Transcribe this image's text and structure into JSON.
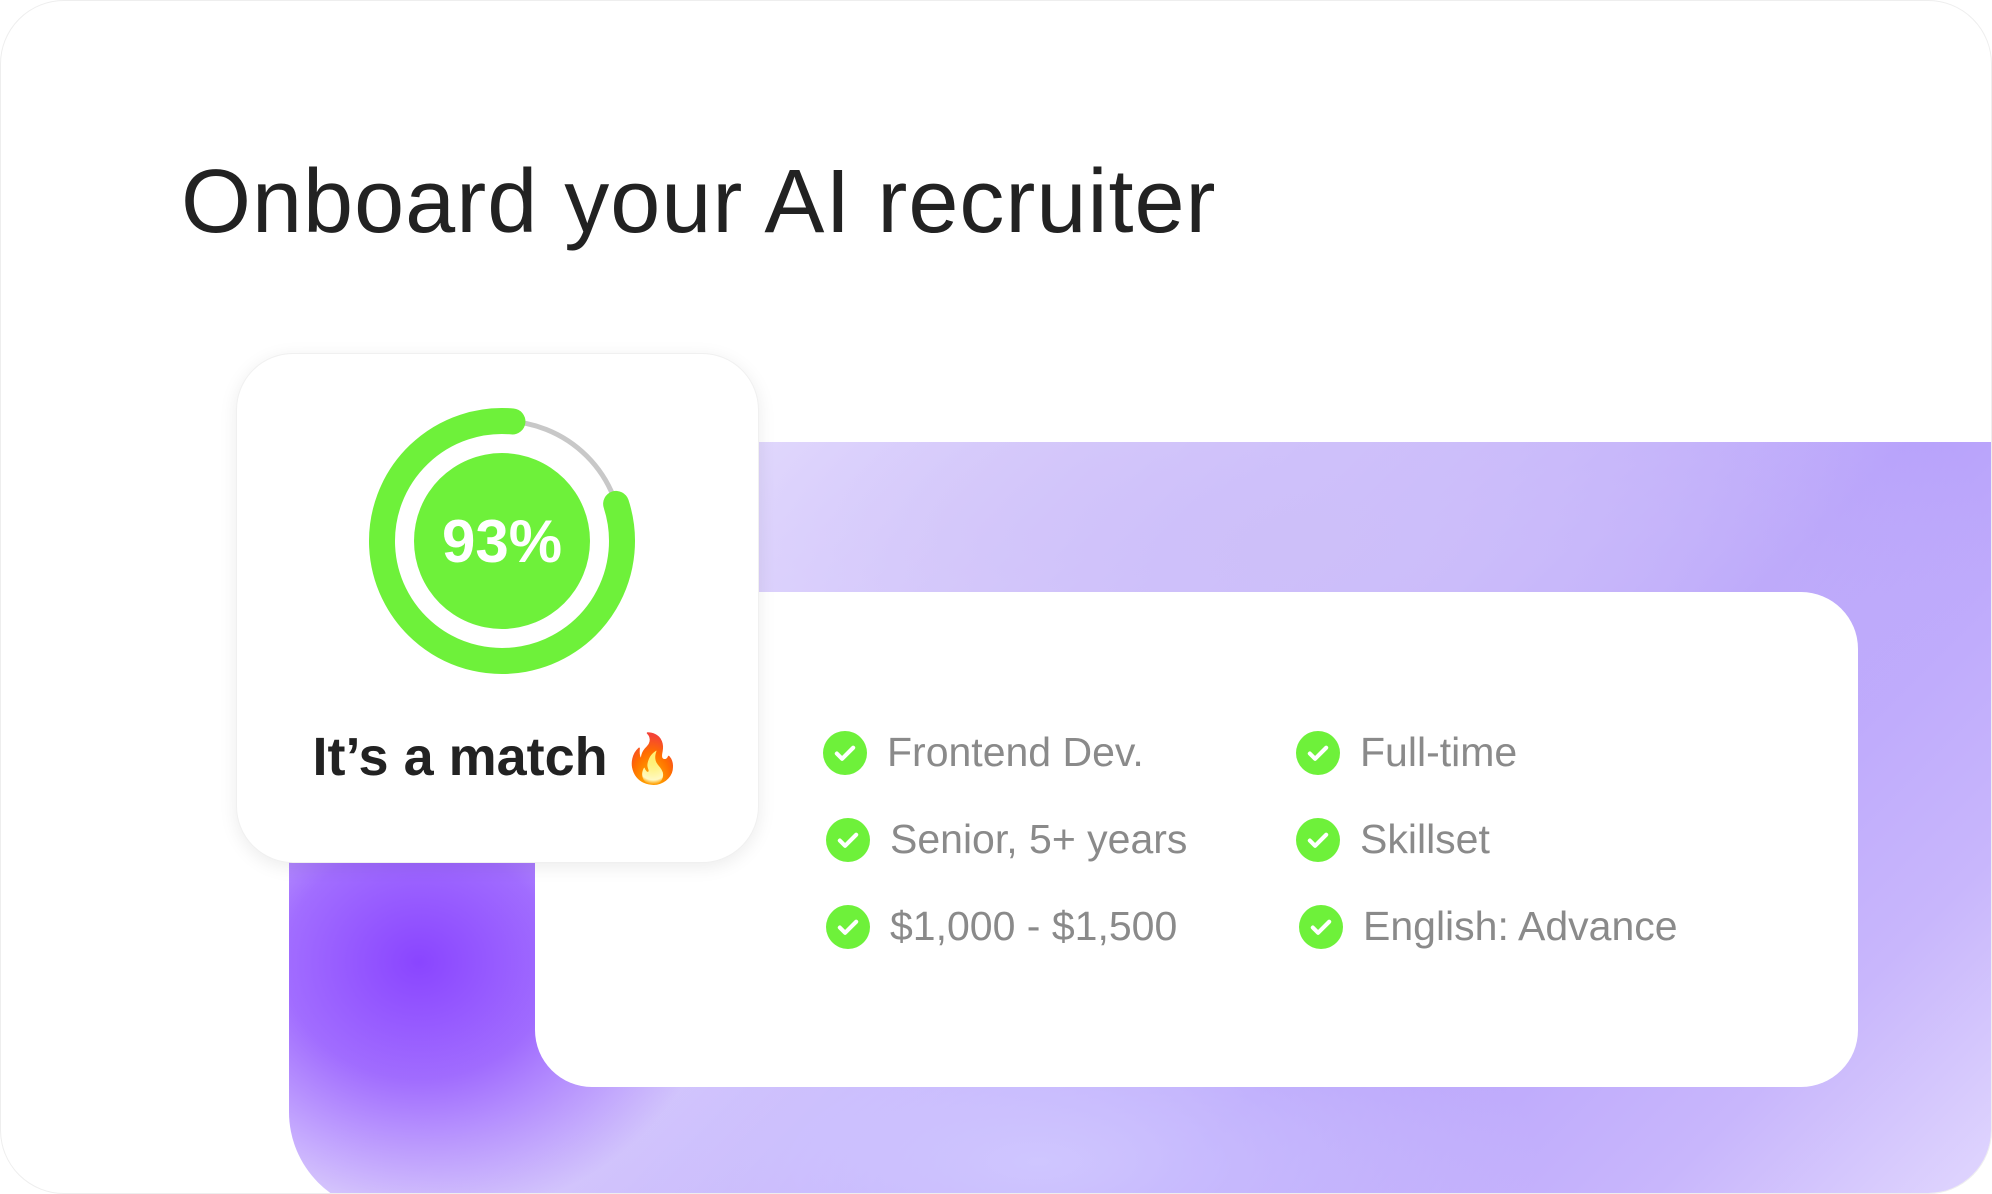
{
  "title": "Onboard your AI recruiter",
  "match_card": {
    "percent_label": "93%",
    "match_percent": 93,
    "headline": "It’s a match",
    "emoji": "🔥",
    "icon": "fire-icon"
  },
  "criteria": [
    {
      "label": "Frontend Dev.",
      "icon": "check-circle-icon"
    },
    {
      "label": "Full-time",
      "icon": "check-circle-icon"
    },
    {
      "label": "Senior, 5+ years",
      "icon": "check-circle-icon"
    },
    {
      "label": "Skillset",
      "icon": "check-circle-icon"
    },
    {
      "label": "$1,000 - $1,500",
      "icon": "check-circle-icon"
    },
    {
      "label": "English: Advance",
      "icon": "check-circle-icon"
    }
  ],
  "colors": {
    "accent_green": "#6ef13a",
    "purple": "#8a45ff",
    "track_gray": "#c8c8c8",
    "text_dark": "#222222",
    "text_muted": "#8a8a8a"
  }
}
